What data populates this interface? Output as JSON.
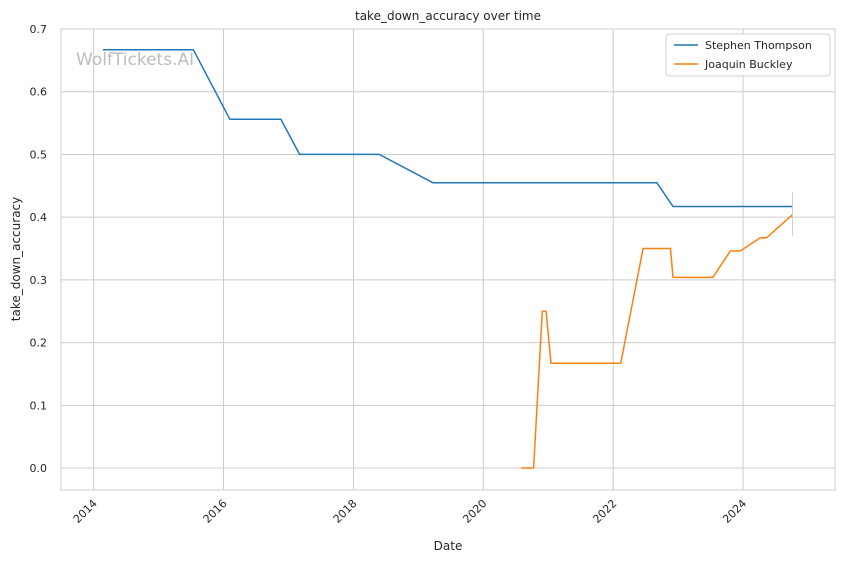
{
  "chart_data": {
    "type": "line",
    "title": "take_down_accuracy over time",
    "xlabel": "Date",
    "ylabel": "take_down_accuracy",
    "watermark": "WolfTickets.AI",
    "x_ticks": [
      "2014",
      "2016",
      "2018",
      "2020",
      "2022",
      "2024"
    ],
    "y_ticks": [
      "0.0",
      "0.1",
      "0.2",
      "0.3",
      "0.4",
      "0.5",
      "0.6",
      "0.7"
    ],
    "x_range": [
      "2013-07-01",
      "2025-06-01"
    ],
    "ylim": [
      -0.035,
      0.7
    ],
    "grid": true,
    "legend_position": "top-right",
    "series": [
      {
        "name": "Stephen Thompson",
        "color": "#1f77b4",
        "points": [
          [
            "2014-02-22",
            0.667
          ],
          [
            "2015-07-15",
            0.667
          ],
          [
            "2016-02-06",
            0.556
          ],
          [
            "2016-11-19",
            0.556
          ],
          [
            "2017-03-04",
            0.5
          ],
          [
            "2018-05-26",
            0.5
          ],
          [
            "2019-03-23",
            0.455
          ],
          [
            "2022-09-03",
            0.455
          ],
          [
            "2022-12-03",
            0.417
          ],
          [
            "2024-10-05",
            0.417
          ]
        ]
      },
      {
        "name": "Joaquin Buckley",
        "color": "#ff7f0e",
        "points": [
          [
            "2020-08-01",
            0.0
          ],
          [
            "2020-10-10",
            0.0
          ],
          [
            "2020-11-28",
            0.25
          ],
          [
            "2020-12-19",
            0.25
          ],
          [
            "2021-01-16",
            0.167
          ],
          [
            "2022-02-12",
            0.167
          ],
          [
            "2022-06-18",
            0.35
          ],
          [
            "2022-11-19",
            0.35
          ],
          [
            "2022-12-03",
            0.304
          ],
          [
            "2023-07-15",
            0.304
          ],
          [
            "2023-10-21",
            0.346
          ],
          [
            "2023-12-16",
            0.346
          ],
          [
            "2024-04-06",
            0.367
          ],
          [
            "2024-05-11",
            0.367
          ],
          [
            "2024-10-05",
            0.404
          ]
        ]
      }
    ]
  }
}
